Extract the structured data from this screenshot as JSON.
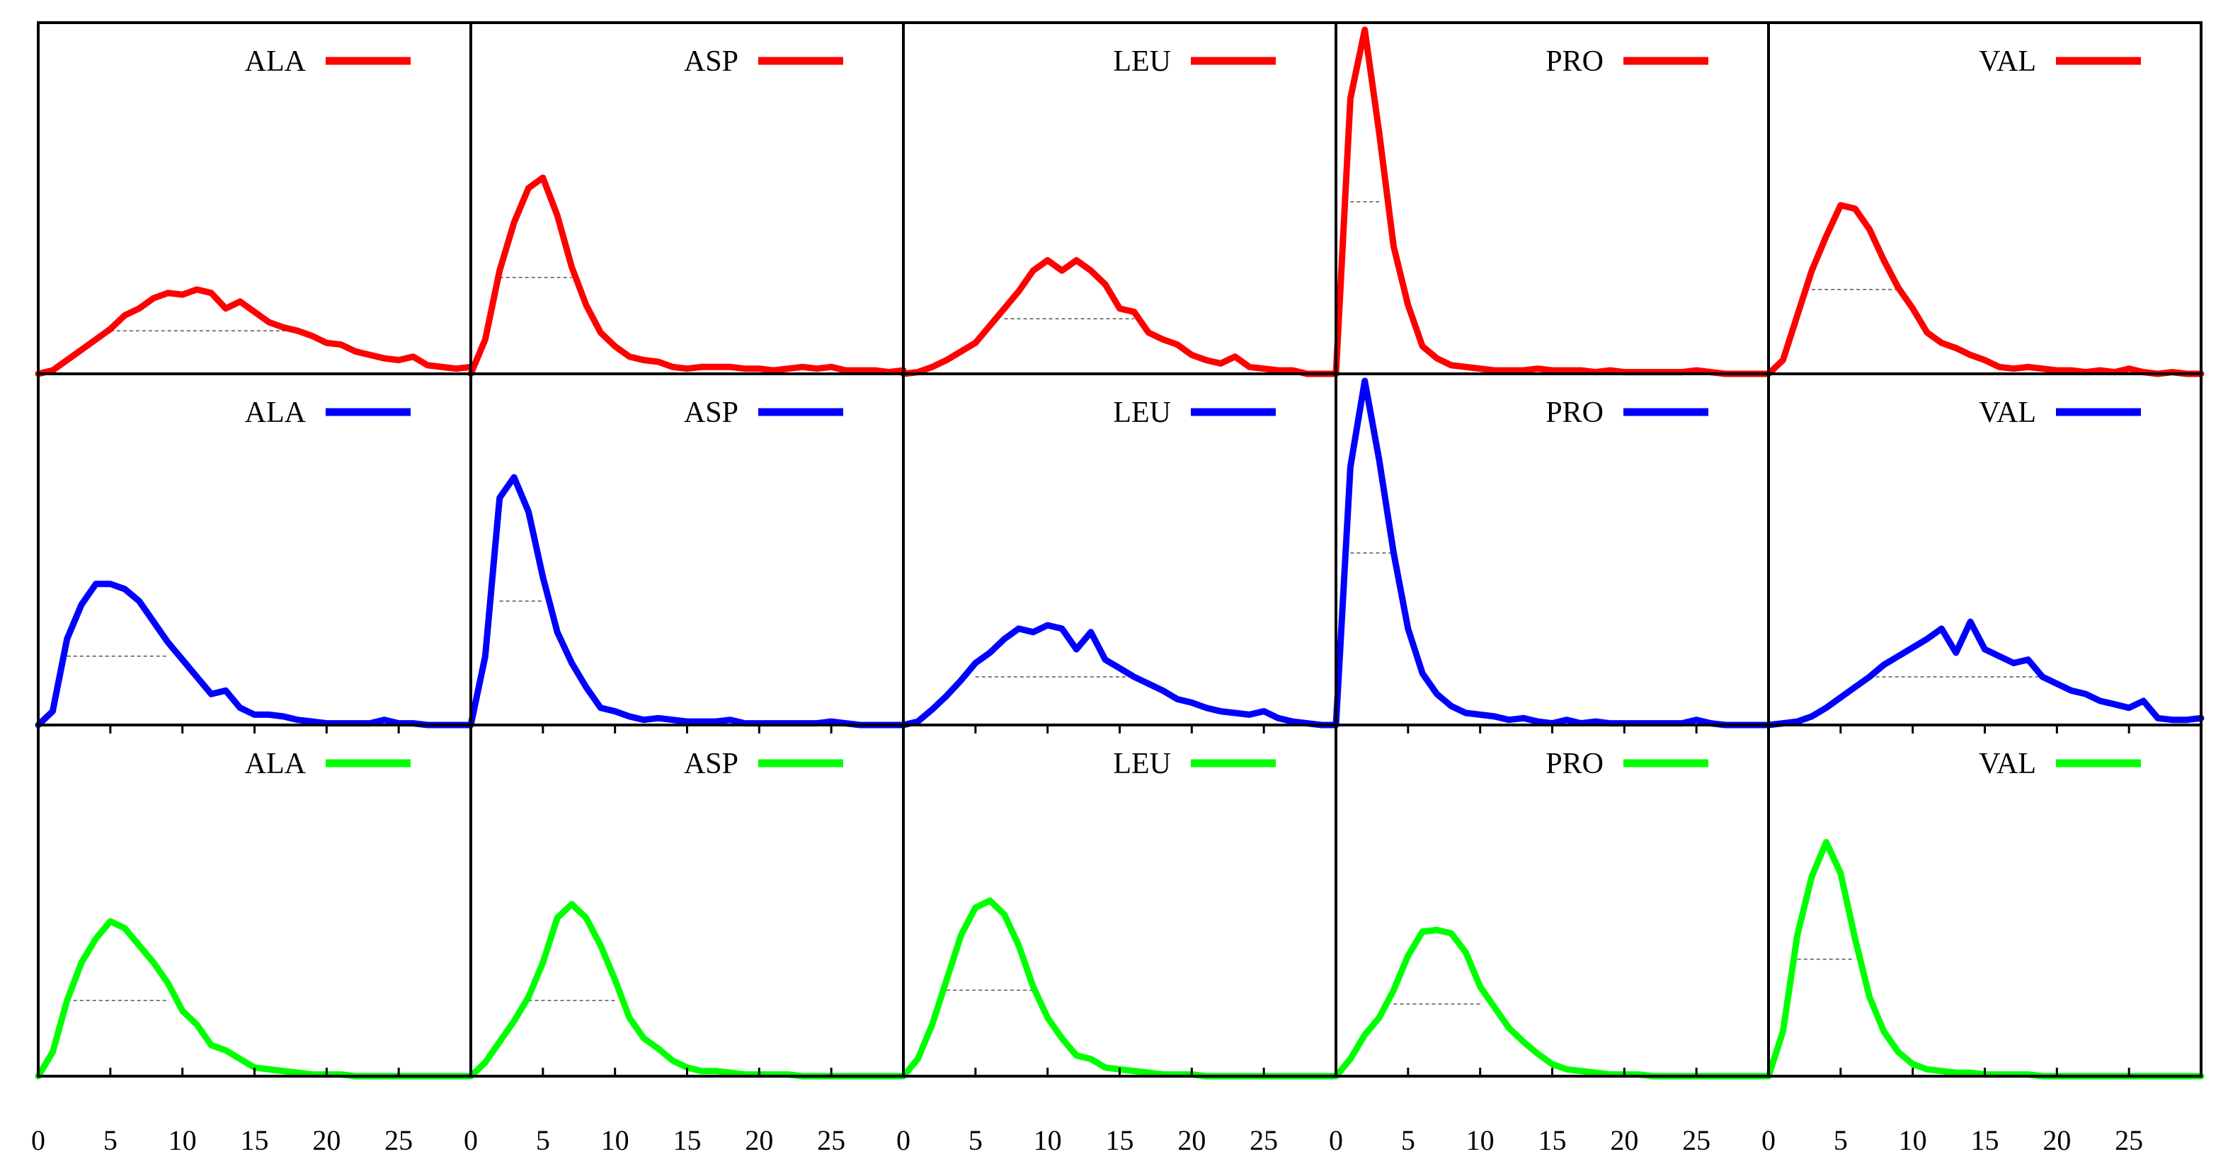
{
  "chart_data": {
    "type": "line",
    "layout": "grid of small multiples, 3 rows x 5 columns",
    "x_ticks": [
      0,
      5,
      10,
      15,
      20,
      25
    ],
    "xlim": [
      0,
      30
    ],
    "ylim": [
      0,
      1
    ],
    "rows": [
      {
        "color": "#ff0000",
        "panels": [
          {
            "label": "ALA",
            "mean": 0.125,
            "values": [
              0.0,
              0.01,
              0.04,
              0.07,
              0.1,
              0.13,
              0.17,
              0.19,
              0.22,
              0.235,
              0.23,
              0.245,
              0.235,
              0.19,
              0.21,
              0.18,
              0.15,
              0.135,
              0.125,
              0.11,
              0.09,
              0.085,
              0.065,
              0.055,
              0.045,
              0.04,
              0.05,
              0.025,
              0.02,
              0.015,
              0.02
            ]
          },
          {
            "label": "ASP",
            "mean": 0.28,
            "values": [
              0.0,
              0.1,
              0.3,
              0.44,
              0.54,
              0.57,
              0.46,
              0.31,
              0.2,
              0.12,
              0.08,
              0.05,
              0.04,
              0.035,
              0.02,
              0.015,
              0.02,
              0.02,
              0.02,
              0.015,
              0.015,
              0.01,
              0.015,
              0.02,
              0.015,
              0.02,
              0.01,
              0.01,
              0.01,
              0.005,
              0.01
            ]
          },
          {
            "label": "LEU",
            "mean": 0.16,
            "values": [
              0.0,
              0.005,
              0.02,
              0.04,
              0.065,
              0.09,
              0.14,
              0.19,
              0.24,
              0.3,
              0.33,
              0.3,
              0.33,
              0.3,
              0.26,
              0.19,
              0.18,
              0.12,
              0.1,
              0.085,
              0.055,
              0.04,
              0.03,
              0.05,
              0.02,
              0.015,
              0.01,
              0.01,
              0.0,
              0.0,
              0.0
            ]
          },
          {
            "label": "PRO",
            "mean": 0.5,
            "values": [
              0.0,
              0.8,
              1.0,
              0.7,
              0.37,
              0.2,
              0.08,
              0.045,
              0.025,
              0.02,
              0.015,
              0.01,
              0.01,
              0.01,
              0.015,
              0.01,
              0.01,
              0.01,
              0.005,
              0.01,
              0.005,
              0.005,
              0.005,
              0.005,
              0.005,
              0.01,
              0.005,
              0.0,
              0.0,
              0.0,
              0.0
            ]
          },
          {
            "label": "VAL",
            "mean": 0.245,
            "values": [
              0.0,
              0.04,
              0.17,
              0.3,
              0.4,
              0.49,
              0.48,
              0.42,
              0.33,
              0.25,
              0.19,
              0.12,
              0.09,
              0.075,
              0.055,
              0.04,
              0.02,
              0.015,
              0.02,
              0.015,
              0.01,
              0.01,
              0.005,
              0.01,
              0.005,
              0.015,
              0.005,
              0.0,
              0.005,
              0.0,
              0.0
            ]
          }
        ]
      },
      {
        "color": "#0000ff",
        "panels": [
          {
            "label": "ALA",
            "mean": 0.2,
            "values": [
              0.0,
              0.04,
              0.25,
              0.35,
              0.41,
              0.41,
              0.395,
              0.36,
              0.3,
              0.24,
              0.19,
              0.14,
              0.09,
              0.1,
              0.05,
              0.03,
              0.03,
              0.025,
              0.015,
              0.01,
              0.005,
              0.005,
              0.005,
              0.005,
              0.015,
              0.005,
              0.005,
              0.0,
              0.0,
              0.0,
              0.0
            ]
          },
          {
            "label": "ASP",
            "mean": 0.36,
            "values": [
              0.0,
              0.2,
              0.66,
              0.72,
              0.62,
              0.43,
              0.27,
              0.18,
              0.11,
              0.05,
              0.04,
              0.025,
              0.015,
              0.02,
              0.015,
              0.01,
              0.01,
              0.01,
              0.015,
              0.005,
              0.005,
              0.005,
              0.005,
              0.005,
              0.005,
              0.01,
              0.005,
              0.0,
              0.0,
              0.0,
              0.0
            ]
          },
          {
            "label": "LEU",
            "mean": 0.14,
            "values": [
              0.0,
              0.01,
              0.045,
              0.085,
              0.13,
              0.18,
              0.21,
              0.25,
              0.28,
              0.27,
              0.29,
              0.28,
              0.22,
              0.27,
              0.19,
              0.165,
              0.14,
              0.12,
              0.1,
              0.075,
              0.065,
              0.05,
              0.04,
              0.035,
              0.03,
              0.04,
              0.02,
              0.01,
              0.005,
              0.0,
              0.0
            ]
          },
          {
            "label": "PRO",
            "mean": 0.5,
            "values": [
              0.0,
              0.75,
              1.0,
              0.77,
              0.5,
              0.28,
              0.15,
              0.09,
              0.055,
              0.035,
              0.03,
              0.025,
              0.015,
              0.02,
              0.01,
              0.005,
              0.015,
              0.005,
              0.01,
              0.005,
              0.005,
              0.005,
              0.005,
              0.005,
              0.005,
              0.015,
              0.005,
              0.0,
              0.0,
              0.0,
              0.0
            ]
          },
          {
            "label": "VAL",
            "mean": 0.14,
            "values": [
              0.0,
              0.005,
              0.01,
              0.025,
              0.05,
              0.08,
              0.11,
              0.14,
              0.175,
              0.2,
              0.225,
              0.25,
              0.28,
              0.21,
              0.3,
              0.22,
              0.2,
              0.18,
              0.19,
              0.14,
              0.12,
              0.1,
              0.09,
              0.07,
              0.06,
              0.05,
              0.07,
              0.02,
              0.015,
              0.015,
              0.02
            ]
          }
        ]
      },
      {
        "color": "#00ff00",
        "panels": [
          {
            "label": "ALA",
            "mean": 0.22,
            "values": [
              0.0,
              0.07,
              0.22,
              0.33,
              0.4,
              0.45,
              0.43,
              0.38,
              0.33,
              0.27,
              0.19,
              0.15,
              0.09,
              0.075,
              0.05,
              0.025,
              0.02,
              0.015,
              0.01,
              0.005,
              0.005,
              0.005,
              0.0,
              0.0,
              0.0,
              0.0,
              0.0,
              0.0,
              0.0,
              0.0,
              0.0
            ]
          },
          {
            "label": "ASP",
            "mean": 0.22,
            "values": [
              0.0,
              0.04,
              0.1,
              0.16,
              0.23,
              0.33,
              0.46,
              0.5,
              0.46,
              0.38,
              0.28,
              0.17,
              0.11,
              0.08,
              0.045,
              0.025,
              0.015,
              0.015,
              0.01,
              0.005,
              0.005,
              0.005,
              0.005,
              0.0,
              0.0,
              0.0,
              0.0,
              0.0,
              0.0,
              0.0,
              0.0
            ]
          },
          {
            "label": "LEU",
            "mean": 0.25,
            "values": [
              0.0,
              0.05,
              0.15,
              0.28,
              0.41,
              0.49,
              0.51,
              0.47,
              0.38,
              0.26,
              0.17,
              0.11,
              0.06,
              0.05,
              0.025,
              0.02,
              0.015,
              0.01,
              0.005,
              0.005,
              0.005,
              0.0,
              0.0,
              0.0,
              0.0,
              0.0,
              0.0,
              0.0,
              0.0,
              0.0,
              0.0
            ]
          },
          {
            "label": "PRO",
            "mean": 0.21,
            "values": [
              0.0,
              0.05,
              0.12,
              0.17,
              0.25,
              0.35,
              0.42,
              0.425,
              0.415,
              0.36,
              0.26,
              0.2,
              0.14,
              0.1,
              0.065,
              0.035,
              0.02,
              0.015,
              0.01,
              0.005,
              0.005,
              0.005,
              0.0,
              0.0,
              0.0,
              0.0,
              0.0,
              0.0,
              0.0,
              0.0,
              0.0
            ]
          },
          {
            "label": "VAL",
            "mean": 0.34,
            "values": [
              0.0,
              0.13,
              0.41,
              0.58,
              0.68,
              0.59,
              0.4,
              0.23,
              0.13,
              0.07,
              0.035,
              0.02,
              0.015,
              0.01,
              0.01,
              0.005,
              0.005,
              0.005,
              0.005,
              0.0,
              0.0,
              0.0,
              0.0,
              0.0,
              0.0,
              0.0,
              0.0,
              0.0,
              0.0,
              0.0,
              0.0
            ]
          }
        ]
      }
    ]
  }
}
